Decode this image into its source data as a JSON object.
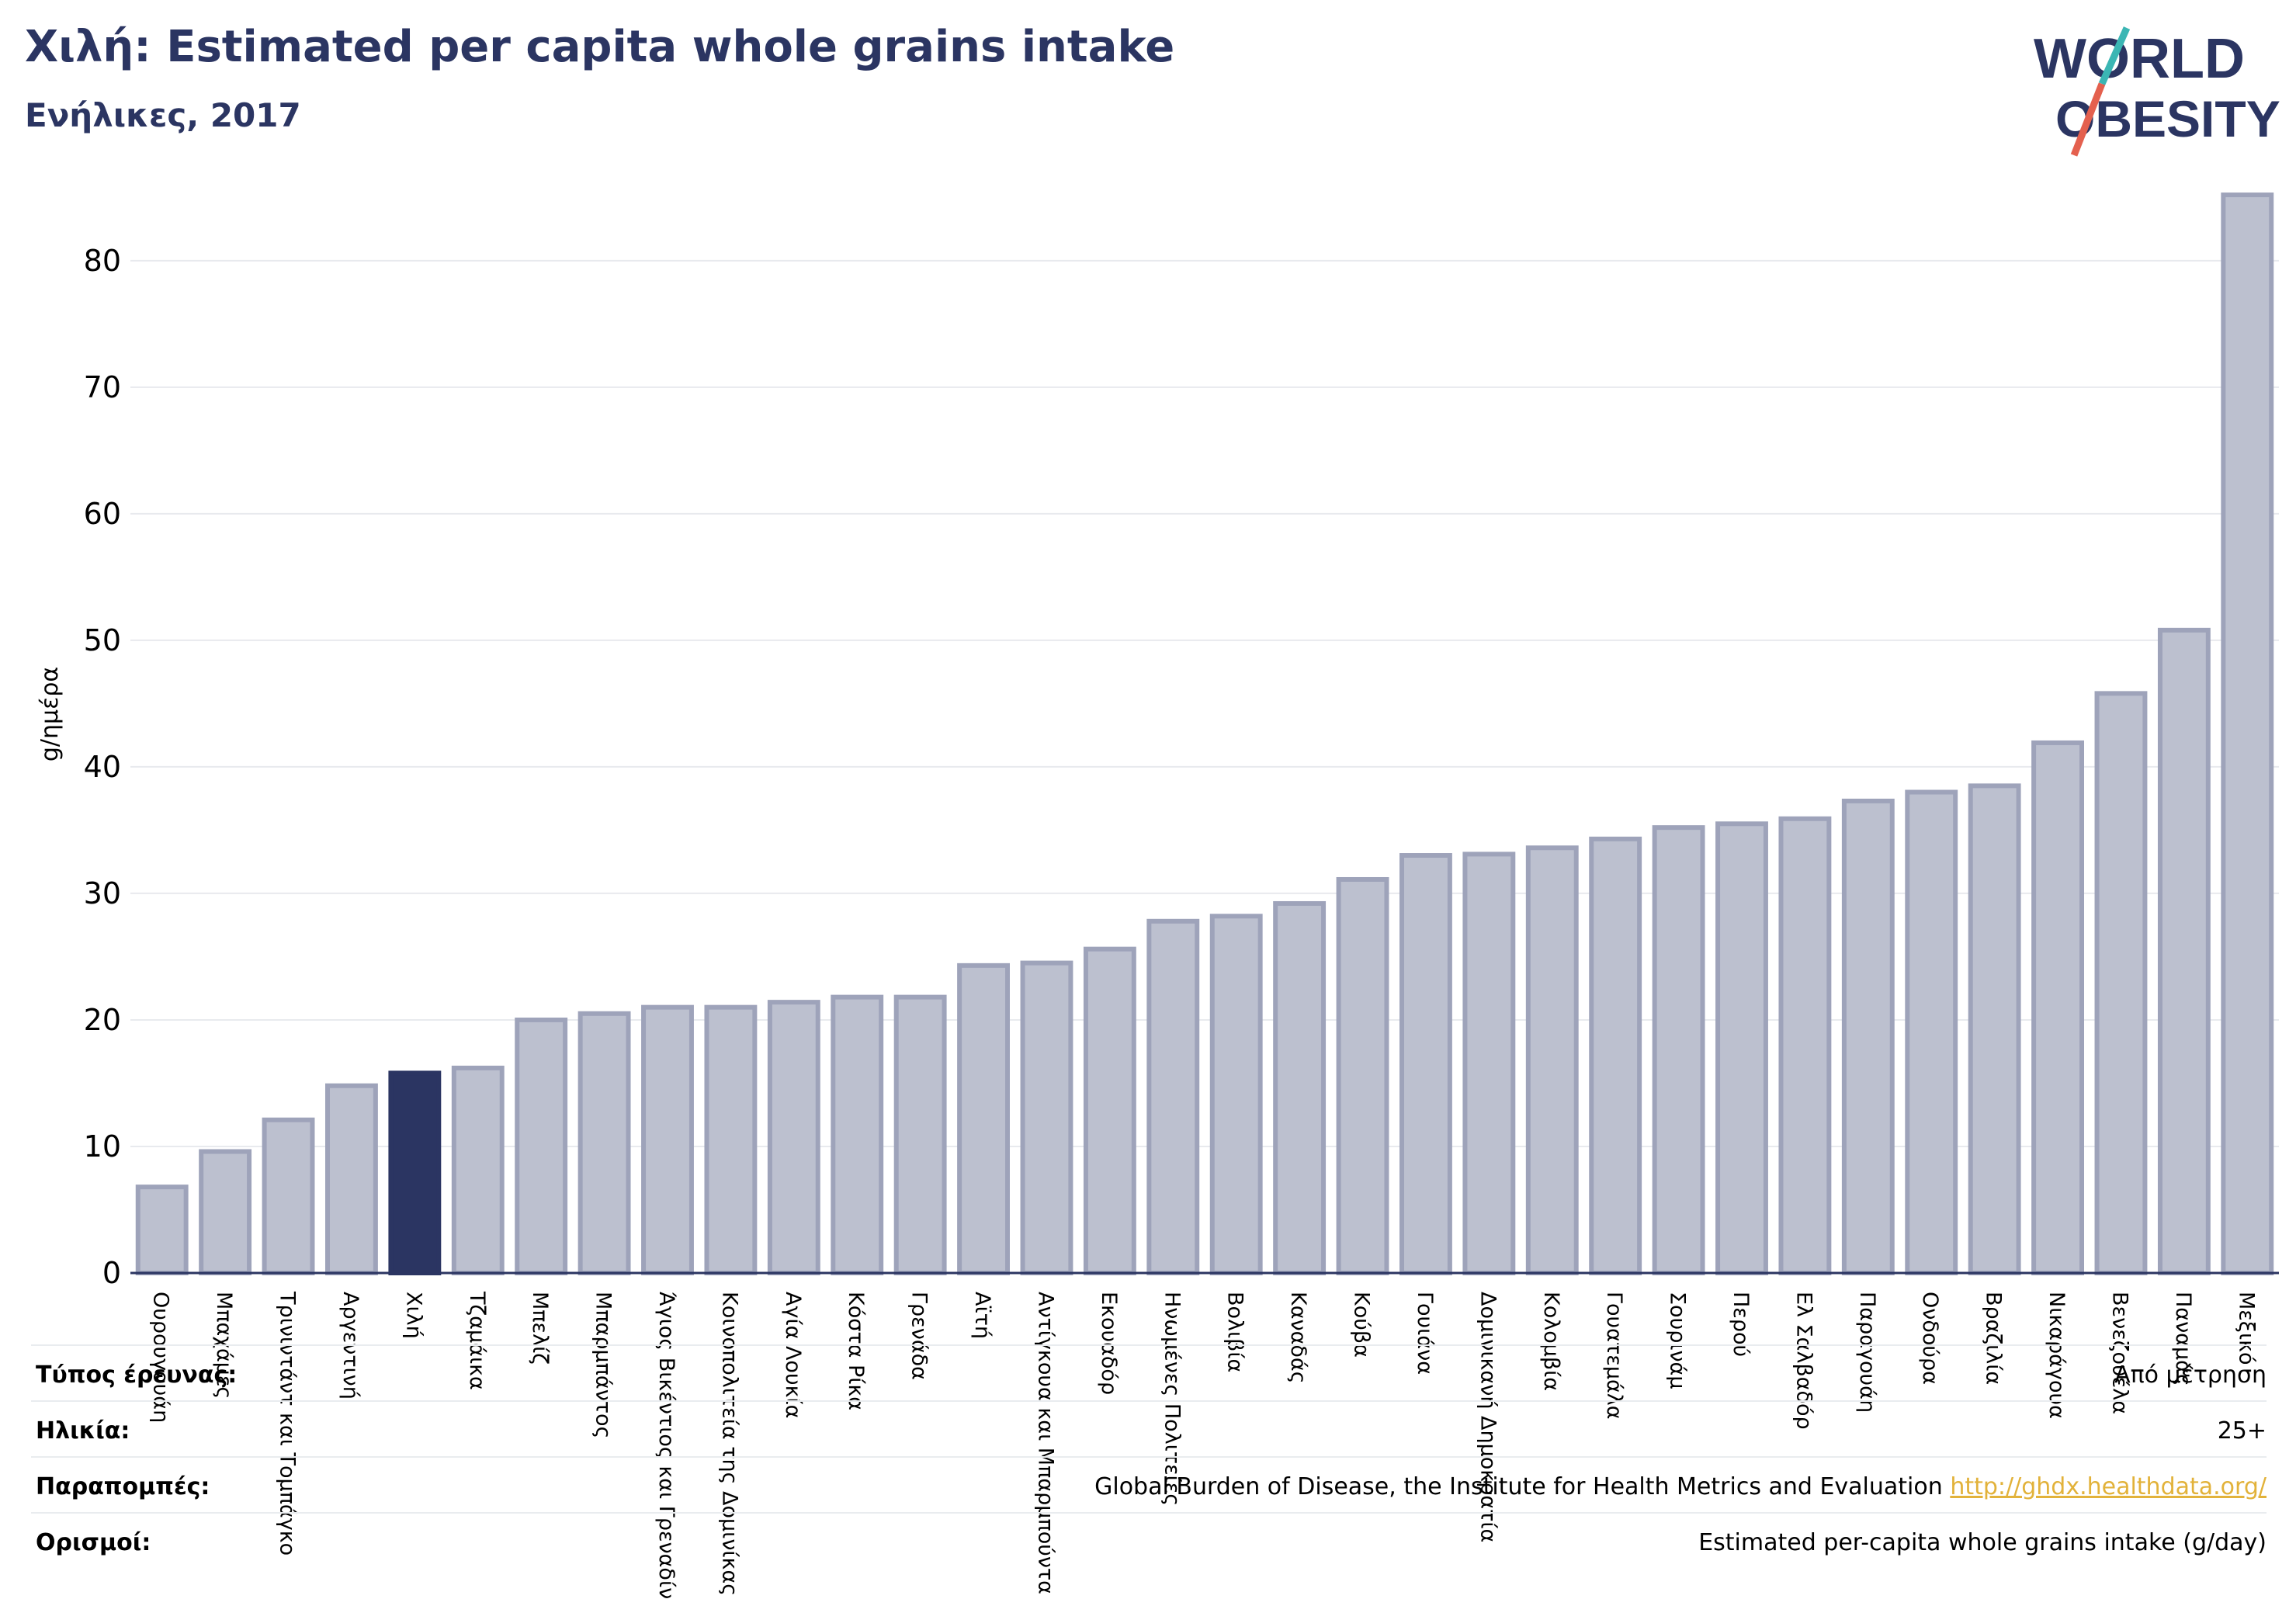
{
  "header": {
    "title": "Χιλή: Estimated per capita whole grains intake",
    "subtitle": "Ενήλικες, 2017"
  },
  "logo": {
    "line1": "WORLD",
    "line2": "OBESITY"
  },
  "colors": {
    "title": "#2b3562",
    "bar": "#bcc0cf",
    "bar_stroke": "#9ea3ba",
    "highlight": "#2b3562",
    "grid": "#e8eaee",
    "link": "#e2b23a"
  },
  "chart_data": {
    "type": "bar",
    "ylabel": "g/ημέρα",
    "ylim": [
      0,
      86
    ],
    "yticks": [
      0,
      10,
      20,
      30,
      40,
      50,
      60,
      70,
      80
    ],
    "grid": true,
    "highlight": "Χιλή",
    "categories": [
      "Ουρουγουάη",
      "Μπαχάμες",
      "Τρινιντάντ και Τομπάγκο",
      "Αργεντινή",
      "Χιλή",
      "Τζαμάικα",
      "Μπελίζ",
      "Μπαρμπάντος",
      "Άγιος Βικέντιος και Γρεναδίνες",
      "Κοινοπολιτεία της Δομινίκας",
      "Αγία Λουκία",
      "Κόστα Ρίκα",
      "Γρενάδα",
      "Αϊτή",
      "Αντίγκουα και Μπαρμπούντα",
      "Εκουαδόρ",
      "Ηνωμένες Πολιτείες",
      "Βολιβία",
      "Καναδάς",
      "Κούβα",
      "Γουιάνα",
      "Δομινικανή Δημοκρατία",
      "Κολομβία",
      "Γουατεμάλα",
      "Σουρινάμ",
      "Περού",
      "Ελ Σαλβαδόρ",
      "Παραγουάη",
      "Ονδούρα",
      "Βραζιλία",
      "Νικαράγουα",
      "Βενεζουέλα",
      "Παναμάς",
      "Μεξικό"
    ],
    "values": [
      6.8,
      9.6,
      12.1,
      14.8,
      15.8,
      16.2,
      20.0,
      20.5,
      21.0,
      21.0,
      21.4,
      21.8,
      21.8,
      24.3,
      24.5,
      25.6,
      27.8,
      28.2,
      29.2,
      31.1,
      33.0,
      33.1,
      33.6,
      34.3,
      35.2,
      35.5,
      35.9,
      37.3,
      38.0,
      38.5,
      41.9,
      45.8,
      50.8,
      85.2
    ]
  },
  "meta": {
    "rows": [
      {
        "key": "Τύπος έρευνας:",
        "value": "Από μέτρηση"
      },
      {
        "key": "Ηλικία:",
        "value": "25+"
      },
      {
        "key": "Παραπομπές:",
        "value": "Global Burden of Disease, the Institute for Health Metrics and Evaluation",
        "link": "http://ghdx.healthdata.org/"
      },
      {
        "key": "Ορισμοί:",
        "value": "Estimated per-capita whole grains intake (g/day)"
      }
    ]
  }
}
